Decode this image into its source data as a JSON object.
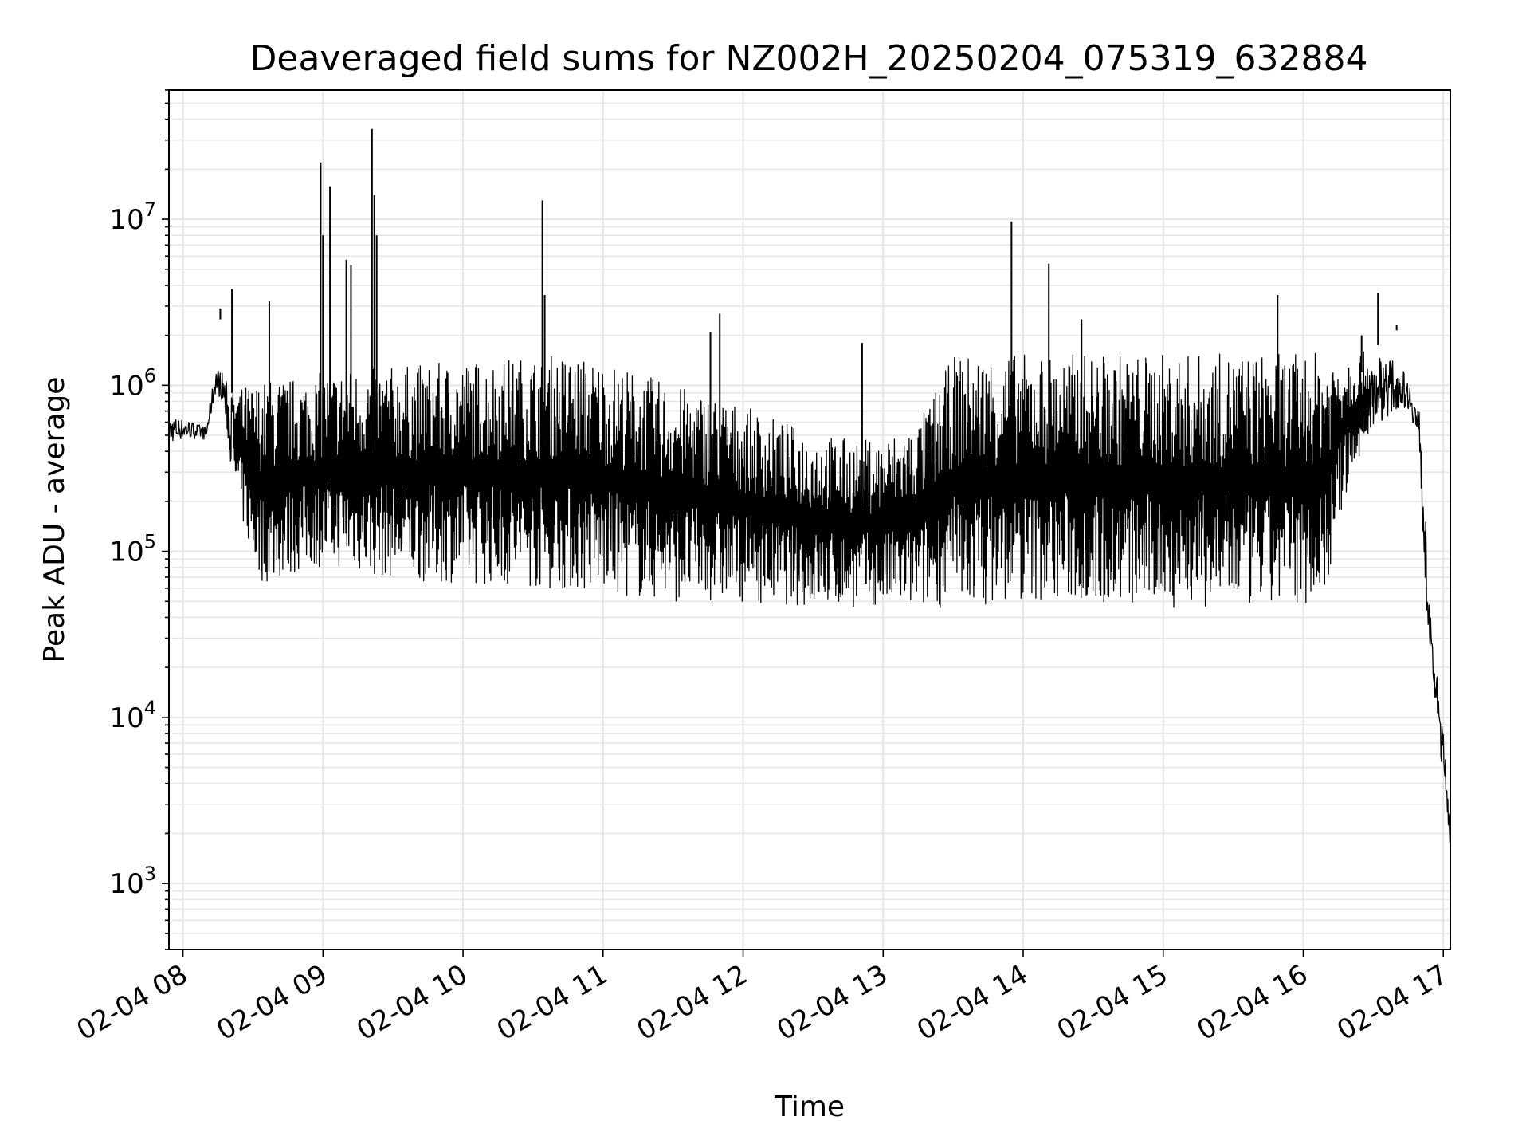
{
  "chart_data": {
    "type": "line",
    "title": "Deaveraged field sums for NZ002H_20250204_075319_632884",
    "xlabel": "Time",
    "ylabel": "Peak ADU - average",
    "yscale": "log",
    "ylim": [
      400,
      60000000
    ],
    "xlim": [
      "2025-02-04 07:54",
      "2025-02-04 17:03"
    ],
    "grid": true,
    "line_color": "#000000",
    "grid_color": "#e6e6e6",
    "x_ticks": [
      {
        "at": "2025-02-04 08:00",
        "label": "02-04 08"
      },
      {
        "at": "2025-02-04 09:00",
        "label": "02-04 09"
      },
      {
        "at": "2025-02-04 10:00",
        "label": "02-04 10"
      },
      {
        "at": "2025-02-04 11:00",
        "label": "02-04 11"
      },
      {
        "at": "2025-02-04 12:00",
        "label": "02-04 12"
      },
      {
        "at": "2025-02-04 13:00",
        "label": "02-04 13"
      },
      {
        "at": "2025-02-04 14:00",
        "label": "02-04 14"
      },
      {
        "at": "2025-02-04 15:00",
        "label": "02-04 15"
      },
      {
        "at": "2025-02-04 16:00",
        "label": "02-04 16"
      },
      {
        "at": "2025-02-04 17:00",
        "label": "02-04 17"
      }
    ],
    "y_ticks": [
      {
        "value": 1000,
        "base": "10",
        "exp": "3"
      },
      {
        "value": 10000,
        "base": "10",
        "exp": "4"
      },
      {
        "value": 100000,
        "base": "10",
        "exp": "5"
      },
      {
        "value": 1000000,
        "base": "10",
        "exp": "6"
      },
      {
        "value": 10000000,
        "base": "10",
        "exp": "7"
      }
    ],
    "series": [
      {
        "envelope": {
          "x": [
            "2025-02-04 07:54",
            "2025-02-04 08:02",
            "2025-02-04 08:10",
            "2025-02-04 08:14",
            "2025-02-04 08:17",
            "2025-02-04 08:21",
            "2025-02-04 08:27",
            "2025-02-04 08:33",
            "2025-02-04 08:38",
            "2025-02-04 08:45",
            "2025-02-04 08:55",
            "2025-02-04 09:00",
            "2025-02-04 09:10",
            "2025-02-04 09:20",
            "2025-02-04 09:30",
            "2025-02-04 09:45",
            "2025-02-04 10:00",
            "2025-02-04 10:15",
            "2025-02-04 10:30",
            "2025-02-04 10:45",
            "2025-02-04 11:00",
            "2025-02-04 11:15",
            "2025-02-04 11:30",
            "2025-02-04 11:45",
            "2025-02-04 12:00",
            "2025-02-04 12:15",
            "2025-02-04 12:30",
            "2025-02-04 12:45",
            "2025-02-04 13:00",
            "2025-02-04 13:15",
            "2025-02-04 13:30",
            "2025-02-04 13:45",
            "2025-02-04 14:00",
            "2025-02-04 14:15",
            "2025-02-04 14:30",
            "2025-02-04 14:45",
            "2025-02-04 15:00",
            "2025-02-04 15:15",
            "2025-02-04 15:30",
            "2025-02-04 15:45",
            "2025-02-04 16:00",
            "2025-02-04 16:10",
            "2025-02-04 16:15",
            "2025-02-04 16:20",
            "2025-02-04 16:25",
            "2025-02-04 16:30",
            "2025-02-04 16:36",
            "2025-02-04 16:42",
            "2025-02-04 16:46",
            "2025-02-04 16:50",
            "2025-02-04 16:52",
            "2025-02-04 16:55",
            "2025-02-04 16:58",
            "2025-02-04 17:01",
            "2025-02-04 17:03"
          ],
          "high": [
            650000,
            620000,
            560000,
            1300000,
            1200000,
            900000,
            1000000,
            1050000,
            1100000,
            1100000,
            1150000,
            1200000,
            1250000,
            1300000,
            1300000,
            1350000,
            1400000,
            1450000,
            1500000,
            1550000,
            1400000,
            1200000,
            1000000,
            900000,
            750000,
            620000,
            520000,
            480000,
            480000,
            600000,
            1500000,
            1550000,
            1550000,
            1550000,
            1550000,
            1550000,
            1550000,
            1550000,
            1550000,
            1550000,
            1550000,
            1600000,
            1600000,
            1600000,
            1600000,
            1550000,
            1500000,
            1300000,
            1000000,
            700000,
            200000,
            30000,
            15000,
            6000,
            2200
          ],
          "low": [
            450000,
            480000,
            470000,
            900000,
            800000,
            300000,
            120000,
            65000,
            65000,
            70000,
            80000,
            80000,
            80000,
            70000,
            70000,
            65000,
            65000,
            62000,
            60000,
            58000,
            56000,
            52000,
            50000,
            50000,
            50000,
            48000,
            46000,
            46000,
            46000,
            45000,
            46000,
            48000,
            50000,
            50000,
            48000,
            46000,
            46000,
            45000,
            45000,
            45000,
            48000,
            55000,
            150000,
            250000,
            400000,
            550000,
            650000,
            750000,
            700000,
            350000,
            60000,
            20000,
            7000,
            3500,
            1600
          ]
        },
        "spikes": [
          {
            "t": "2025-02-04 08:16",
            "value": 2900000
          },
          {
            "t": "2025-02-04 08:21",
            "value": 3800000
          },
          {
            "t": "2025-02-04 08:37",
            "value": 3200000
          },
          {
            "t": "2025-02-04 08:59",
            "value": 22000000
          },
          {
            "t": "2025-02-04 09:00",
            "value": 8000000
          },
          {
            "t": "2025-02-04 09:03",
            "value": 15800000
          },
          {
            "t": "2025-02-04 09:10",
            "value": 5700000
          },
          {
            "t": "2025-02-04 09:12",
            "value": 5300000
          },
          {
            "t": "2025-02-04 09:21",
            "value": 35000000
          },
          {
            "t": "2025-02-04 09:22",
            "value": 14000000
          },
          {
            "t": "2025-02-04 09:23",
            "value": 8000000
          },
          {
            "t": "2025-02-04 10:34",
            "value": 13000000
          },
          {
            "t": "2025-02-04 10:35",
            "value": 3500000
          },
          {
            "t": "2025-02-04 11:50",
            "value": 2700000
          },
          {
            "t": "2025-02-04 11:46",
            "value": 2100000
          },
          {
            "t": "2025-02-04 12:51",
            "value": 1800000
          },
          {
            "t": "2025-02-04 13:55",
            "value": 9700000
          },
          {
            "t": "2025-02-04 14:11",
            "value": 5400000
          },
          {
            "t": "2025-02-04 14:25",
            "value": 2500000
          },
          {
            "t": "2025-02-04 15:49",
            "value": 3500000
          },
          {
            "t": "2025-02-04 16:25",
            "value": 2000000
          },
          {
            "t": "2025-02-04 16:32",
            "value": 3600000
          },
          {
            "t": "2025-02-04 16:40",
            "value": 2300000
          }
        ]
      }
    ]
  }
}
